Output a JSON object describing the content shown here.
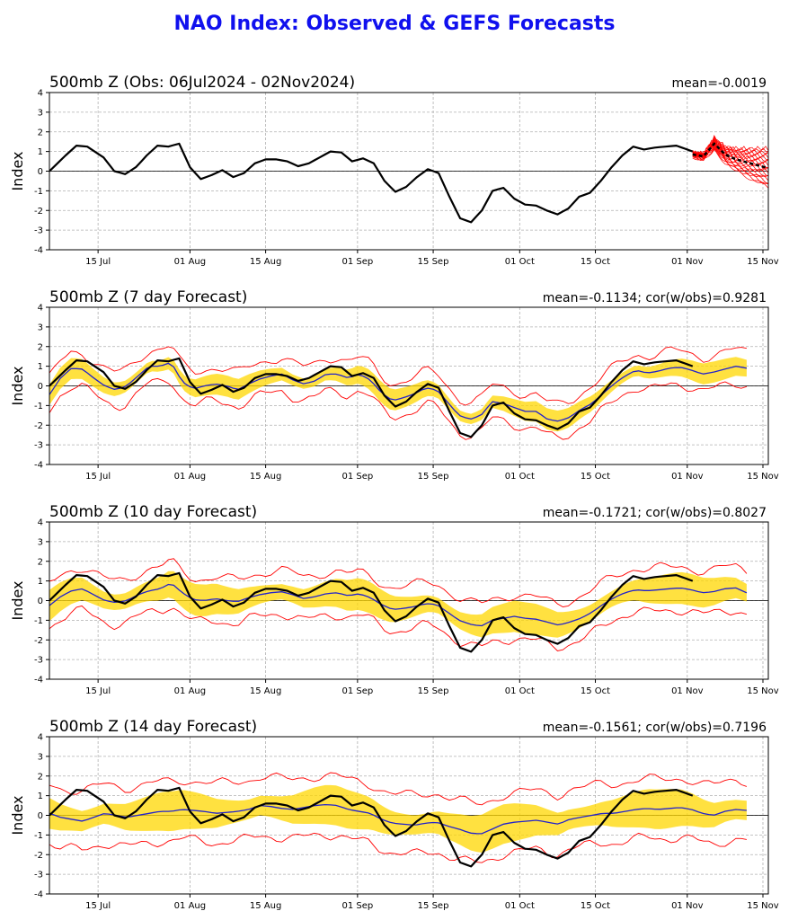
{
  "title": "NAO Index: Observed & GEFS Forecasts",
  "colors": {
    "title": "#1010ee",
    "observed": "#000000",
    "ensemble_mean": "#2222cc",
    "spread_band": "#ffd700",
    "extreme_lines": "#ff0000",
    "members": "#ff0000",
    "grid": "#b0b0b0"
  },
  "x_ticks": [
    "15 Jul",
    "01 Aug",
    "15 Aug",
    "01 Sep",
    "15 Sep",
    "01 Oct",
    "15 Oct",
    "01 Nov",
    "15 Nov"
  ],
  "y_ticks": [
    "-4",
    "-3",
    "-2",
    "-1",
    "0",
    "1",
    "2",
    "3",
    "4"
  ],
  "panels": [
    {
      "title": "500mb Z (Obs: 06Jul2024 - 02Nov2024)",
      "stats": "mean=-0.0019",
      "ylabel": "Index"
    },
    {
      "title": "500mb Z (7 day Forecast)",
      "stats": "mean=-0.1134; cor(w/obs)=0.9281",
      "ylabel": "Index"
    },
    {
      "title": "500mb Z (10 day Forecast)",
      "stats": "mean=-0.1721; cor(w/obs)=0.8027",
      "ylabel": "Index"
    },
    {
      "title": "500mb Z (14 day Forecast)",
      "stats": "mean=-0.1561; cor(w/obs)=0.7196",
      "ylabel": "Index"
    }
  ],
  "chart_data": {
    "type": "line",
    "x_start": "06Jul2024",
    "x_end": "02Nov2024",
    "x_axis_limits": [
      "06Jul2024",
      "16Nov2024"
    ],
    "ylim": [
      -4,
      4
    ],
    "grid": true,
    "observed": {
      "dates": [
        "06Jul2024",
        "09Jul2024",
        "11Jul2024",
        "13Jul2024",
        "16Jul2024",
        "18Jul2024",
        "20Jul2024",
        "22Jul2024",
        "24Jul2024",
        "26Jul2024",
        "28Jul2024",
        "30Jul2024",
        "01Aug2024",
        "03Aug2024",
        "05Aug2024",
        "07Aug2024",
        "09Aug2024",
        "11Aug2024",
        "13Aug2024",
        "15Aug2024",
        "17Aug2024",
        "19Aug2024",
        "21Aug2024",
        "23Aug2024",
        "25Aug2024",
        "27Aug2024",
        "29Aug2024",
        "31Aug2024",
        "02Sep2024",
        "04Sep2024",
        "06Sep2024",
        "08Sep2024",
        "10Sep2024",
        "12Sep2024",
        "14Sep2024",
        "16Sep2024",
        "18Sep2024",
        "20Sep2024",
        "22Sep2024",
        "24Sep2024",
        "26Sep2024",
        "28Sep2024",
        "30Sep2024",
        "02Oct2024",
        "04Oct2024",
        "06Oct2024",
        "08Oct2024",
        "10Oct2024",
        "12Oct2024",
        "14Oct2024",
        "16Oct2024",
        "18Oct2024",
        "20Oct2024",
        "22Oct2024",
        "24Oct2024",
        "26Oct2024",
        "28Oct2024",
        "30Oct2024",
        "01Nov2024",
        "02Nov2024"
      ],
      "values": [
        0.0,
        0.8,
        1.3,
        1.25,
        0.7,
        0.0,
        -0.15,
        0.2,
        0.8,
        1.3,
        1.25,
        1.4,
        0.2,
        -0.4,
        -0.2,
        0.05,
        -0.3,
        -0.1,
        0.4,
        0.6,
        0.6,
        0.5,
        0.25,
        0.4,
        0.7,
        1.0,
        0.95,
        0.5,
        0.65,
        0.4,
        -0.5,
        -1.05,
        -0.8,
        -0.3,
        0.1,
        -0.1,
        -1.3,
        -2.4,
        -2.6,
        -2.0,
        -1.0,
        -0.85,
        -1.4,
        -1.7,
        -1.75,
        -2.0,
        -2.2,
        -1.9,
        -1.3,
        -1.1,
        -0.5,
        0.2,
        0.8,
        1.25,
        1.1,
        1.2,
        1.25,
        1.3,
        1.1,
        1.0
      ]
    },
    "observed_members": {
      "dates": [
        "02Nov2024",
        "04Nov2024",
        "06Nov2024",
        "08Nov2024",
        "10Nov2024",
        "12Nov2024",
        "14Nov2024",
        "16Nov2024"
      ],
      "count": 21,
      "mean_values": [
        0.85,
        0.75,
        1.4,
        0.85,
        0.6,
        0.45,
        0.3,
        0.15
      ],
      "spread": [
        0.1,
        0.15,
        0.3,
        0.4,
        0.55,
        0.7,
        0.85,
        1.0
      ]
    },
    "forecasts": [
      {
        "name": "7 day",
        "mean_line": [
          -0.45,
          0.4,
          0.9,
          0.85,
          0.4,
          0.0,
          -0.2,
          0.0,
          0.5,
          1.0,
          1.0,
          1.2,
          0.2,
          -0.15,
          0.0,
          0.1,
          0.0,
          -0.2,
          0.1,
          0.35,
          0.5,
          0.6,
          0.3,
          0.1,
          0.25,
          0.6,
          0.6,
          0.4,
          0.6,
          0.3,
          -0.35,
          -0.75,
          -0.6,
          -0.4,
          -0.1,
          -0.2,
          -0.85,
          -1.5,
          -1.7,
          -1.5,
          -0.8,
          -0.9,
          -1.1,
          -1.3,
          -1.3,
          -1.7,
          -1.8,
          -1.6,
          -1.2,
          -0.9,
          -0.4,
          0.1,
          0.5,
          0.8,
          0.65,
          0.75,
          0.9,
          0.95,
          0.8,
          0.6,
          0.7,
          0.85,
          1.0,
          0.9
        ],
        "band_halfwidth": 0.4,
        "extreme_offset": 0.85
      },
      {
        "name": "10 day",
        "mean_line": [
          -0.25,
          0.2,
          0.5,
          0.6,
          0.3,
          0.0,
          -0.1,
          0.0,
          0.3,
          0.5,
          0.6,
          0.9,
          0.4,
          0.05,
          0.0,
          0.1,
          0.0,
          -0.05,
          0.15,
          0.3,
          0.4,
          0.45,
          0.3,
          0.1,
          0.2,
          0.35,
          0.4,
          0.25,
          0.35,
          0.15,
          -0.2,
          -0.45,
          -0.4,
          -0.3,
          -0.15,
          -0.2,
          -0.6,
          -1.0,
          -1.2,
          -1.3,
          -1.0,
          -0.9,
          -0.8,
          -0.9,
          -0.95,
          -1.1,
          -1.25,
          -1.1,
          -0.9,
          -0.6,
          -0.2,
          0.15,
          0.4,
          0.55,
          0.5,
          0.55,
          0.6,
          0.65,
          0.55,
          0.4,
          0.45,
          0.6,
          0.65,
          0.4
        ],
        "band_halfwidth": 0.6,
        "extreme_offset": 1.1
      },
      {
        "name": "14 day",
        "mean_line": [
          0.1,
          -0.1,
          -0.2,
          -0.3,
          -0.1,
          0.1,
          0.0,
          -0.1,
          0.0,
          0.1,
          0.2,
          0.2,
          0.3,
          0.25,
          0.2,
          0.1,
          0.15,
          0.2,
          0.3,
          0.5,
          0.45,
          0.35,
          0.3,
          0.4,
          0.5,
          0.55,
          0.5,
          0.3,
          0.2,
          0.1,
          -0.2,
          -0.4,
          -0.45,
          -0.5,
          -0.4,
          -0.35,
          -0.55,
          -0.7,
          -0.9,
          -0.95,
          -0.7,
          -0.45,
          -0.35,
          -0.3,
          -0.25,
          -0.35,
          -0.45,
          -0.2,
          -0.1,
          0.0,
          0.1,
          0.1,
          0.2,
          0.3,
          0.35,
          0.3,
          0.35,
          0.4,
          0.3,
          0.1,
          0.0,
          0.2,
          0.3,
          0.25
        ],
        "band_halfwidth": 0.75,
        "extreme_offset": 1.5
      }
    ]
  }
}
